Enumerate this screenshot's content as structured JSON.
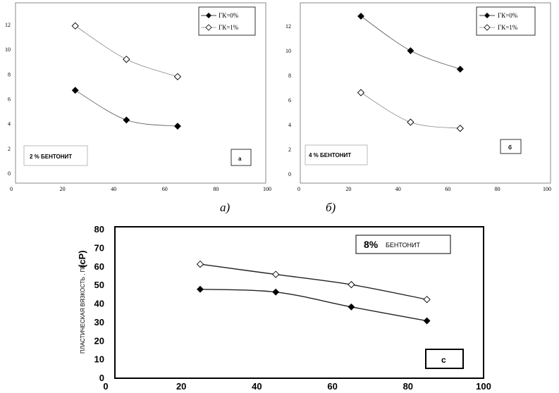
{
  "chart_data": [
    {
      "type": "line",
      "panel": "а)",
      "annotation": "2 % БЕНТОНИТ",
      "corner_label": "а",
      "x": [
        25,
        45,
        65
      ],
      "xlim": [
        0,
        100
      ],
      "xticks": [
        0,
        20,
        40,
        60,
        80,
        100
      ],
      "ylim": [
        0,
        13
      ],
      "yticks": [
        0,
        2,
        4,
        6,
        8,
        10,
        12
      ],
      "grid": false,
      "legend_position": "top-right",
      "series": [
        {
          "name": "ГК=0%",
          "marker": "filled-diamond",
          "values": [
            6.7,
            4.3,
            3.8
          ]
        },
        {
          "name": "ГК=1%",
          "marker": "open-diamond",
          "values": [
            11.9,
            9.2,
            7.8
          ]
        }
      ]
    },
    {
      "type": "line",
      "panel": "б)",
      "annotation": "4 % БЕНТОНИТ",
      "corner_label": "б",
      "x": [
        25,
        45,
        65
      ],
      "xlim": [
        0,
        100
      ],
      "xticks": [
        0,
        20,
        40,
        60,
        80,
        100
      ],
      "ylim": [
        0,
        14
      ],
      "yticks": [
        0,
        2,
        4,
        6,
        8,
        10,
        12
      ],
      "grid": false,
      "legend_position": "top-right",
      "series": [
        {
          "name": "ГК=0%",
          "marker": "filled-diamond",
          "values": [
            12.8,
            10.0,
            8.5
          ]
        },
        {
          "name": "ГК=1%",
          "marker": "open-diamond",
          "values": [
            6.6,
            4.2,
            3.7
          ]
        }
      ]
    },
    {
      "type": "line",
      "annotation_pct": "8%",
      "annotation_word": "БЕНТОНИТ",
      "corner_label": "c",
      "ylabel": "ПЛАСТИЧЕСКАЯ ВЯЗКОСТЬ , ПВ",
      "ylabel_unit": "(cP)",
      "x": [
        25,
        45,
        65,
        85
      ],
      "xlim": [
        0,
        100
      ],
      "xticks": [
        0,
        20,
        40,
        60,
        80,
        100
      ],
      "ylim": [
        0,
        80
      ],
      "yticks": [
        0,
        10,
        20,
        30,
        40,
        50,
        60,
        70,
        80
      ],
      "grid": false,
      "series": [
        {
          "marker": "open-diamond",
          "values": [
            61,
            55.5,
            50,
            42
          ]
        },
        {
          "marker": "filled-diamond",
          "values": [
            47.5,
            46,
            38,
            30.5
          ]
        }
      ]
    }
  ]
}
